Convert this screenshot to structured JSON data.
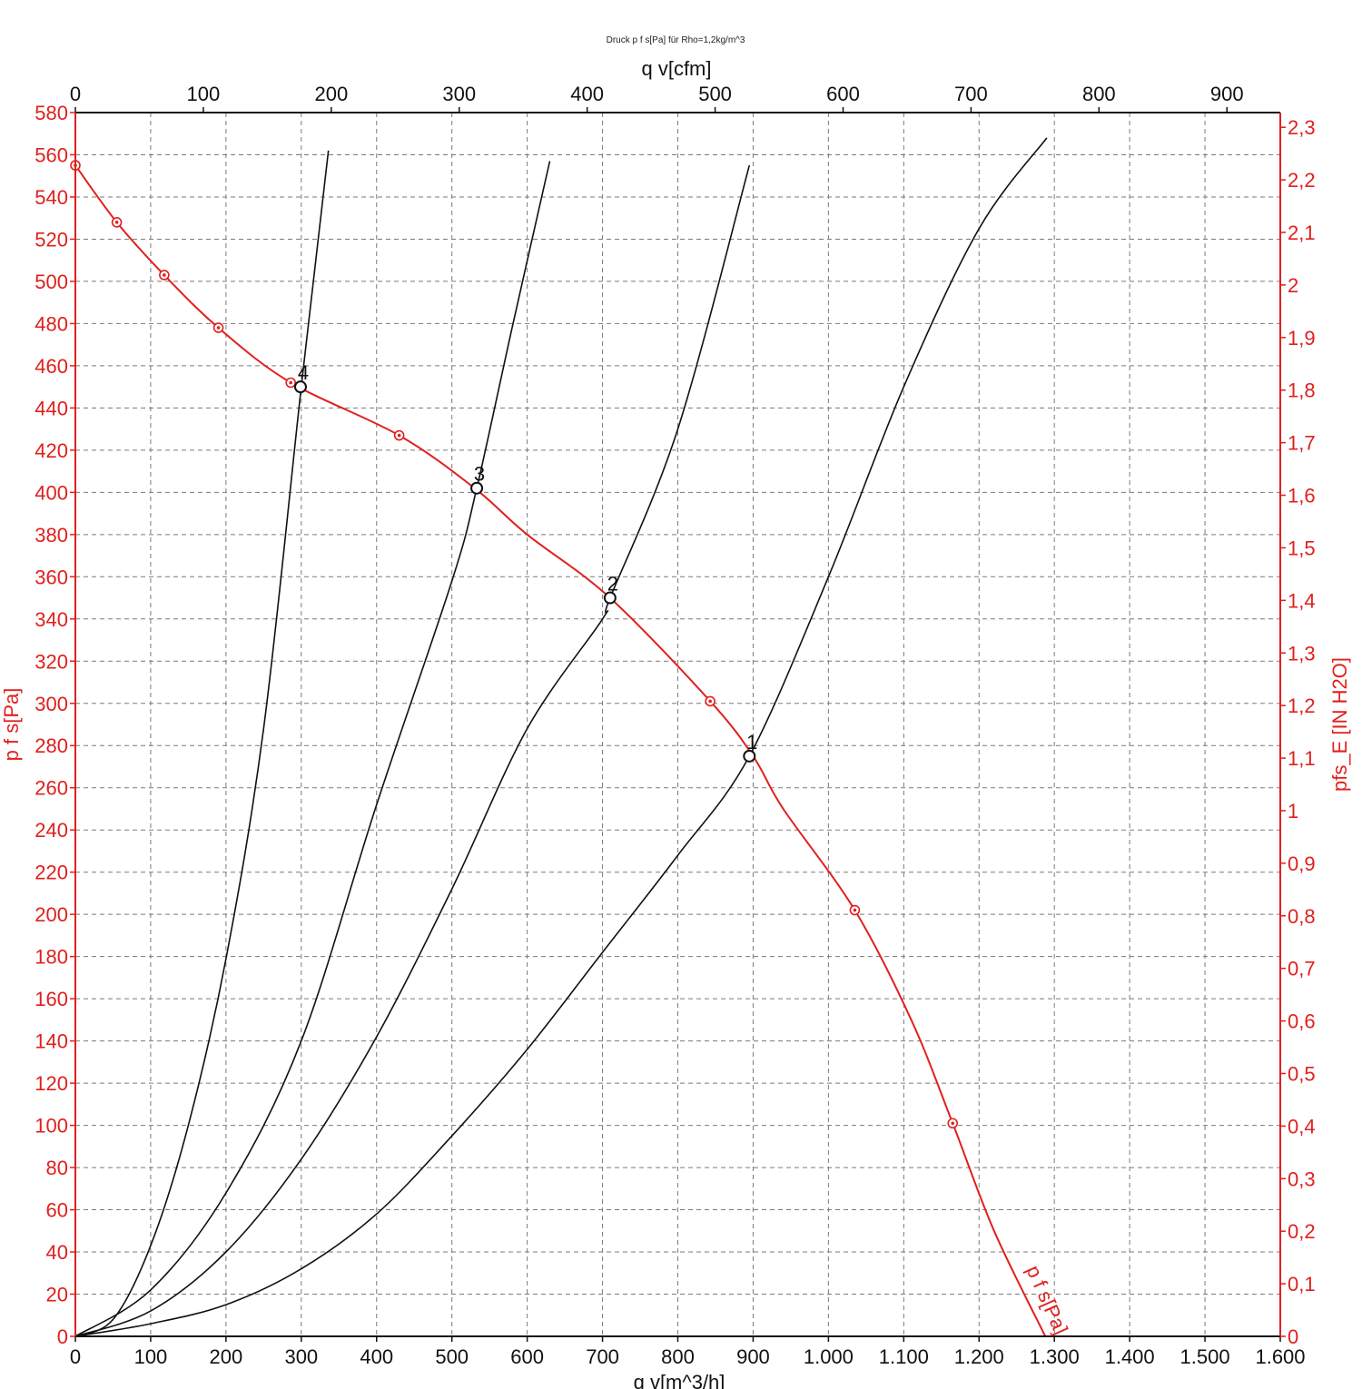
{
  "chart_data": {
    "type": "line",
    "title": "Druck p f s[Pa] für Rho=1,2kg/m^3",
    "xlabel": "q v[m^3/h]",
    "x2label": "q v[cfm]",
    "ylabel": "p f s[Pa]",
    "y2label": "pfs_E [IN H2O]",
    "xlim": [
      0,
      1600
    ],
    "ylim": [
      0,
      580
    ],
    "x2lim": [
      0,
      941.7
    ],
    "y2lim": [
      0,
      2.328
    ],
    "grid": true,
    "x_ticks": [
      "0",
      "100",
      "200",
      "300",
      "400",
      "500",
      "600",
      "700",
      "800",
      "900",
      "1.000",
      "1.100",
      "1.200",
      "1.300",
      "1.400",
      "1.500",
      "1.600"
    ],
    "x_tick_values": [
      0,
      100,
      200,
      300,
      400,
      500,
      600,
      700,
      800,
      900,
      1000,
      1100,
      1200,
      1300,
      1400,
      1500,
      1600
    ],
    "y_ticks": [
      "0",
      "20",
      "40",
      "60",
      "80",
      "100",
      "120",
      "140",
      "160",
      "180",
      "200",
      "220",
      "240",
      "260",
      "280",
      "300",
      "320",
      "340",
      "360",
      "380",
      "400",
      "420",
      "440",
      "460",
      "480",
      "500",
      "520",
      "540",
      "560",
      "580"
    ],
    "y_tick_values": [
      0,
      20,
      40,
      60,
      80,
      100,
      120,
      140,
      160,
      180,
      200,
      220,
      240,
      260,
      280,
      300,
      320,
      340,
      360,
      380,
      400,
      420,
      440,
      460,
      480,
      500,
      520,
      540,
      560,
      580
    ],
    "x2_ticks": [
      "0",
      "100",
      "200",
      "300",
      "400",
      "500",
      "600",
      "700",
      "800",
      "900"
    ],
    "x2_tick_values": [
      0,
      100,
      200,
      300,
      400,
      500,
      600,
      700,
      800,
      900
    ],
    "y2_ticks": [
      "0",
      "0,1",
      "0,2",
      "0,3",
      "0,4",
      "0,5",
      "0,6",
      "0,7",
      "0,8",
      "0,9",
      "1",
      "1,1",
      "1,2",
      "1,3",
      "1,4",
      "1,5",
      "1,6",
      "1,7",
      "1,8",
      "1,9",
      "2",
      "2,1",
      "2,2",
      "2,3"
    ],
    "y2_tick_values": [
      0,
      0.1,
      0.2,
      0.3,
      0.4,
      0.5,
      0.6,
      0.7,
      0.8,
      0.9,
      1,
      1.1,
      1.2,
      1.3,
      1.4,
      1.5,
      1.6,
      1.7,
      1.8,
      1.9,
      2,
      2.1,
      2.2,
      2.3
    ],
    "fan_curve": {
      "name": "p f s[Pa]",
      "color": "#e0201d",
      "x": [
        0,
        55,
        118,
        190,
        286,
        430,
        530,
        600,
        710,
        843,
        900,
        940,
        1035,
        1110,
        1165,
        1220,
        1288
      ],
      "y": [
        555,
        528,
        503,
        478,
        452,
        427,
        402,
        380,
        350,
        301,
        275,
        250,
        202,
        150,
        101,
        50,
        0
      ]
    },
    "fan_markers": {
      "x": [
        0,
        55,
        118,
        190,
        286,
        430,
        843,
        1035,
        1165
      ],
      "y": [
        555,
        528,
        503,
        478,
        452,
        427,
        301,
        202,
        101
      ]
    },
    "system_curves": [
      {
        "color": "#111111",
        "x": [
          0,
          50,
          100,
          150,
          200,
          250,
          300,
          336
        ],
        "y": [
          0,
          8,
          43,
          100,
          179,
          288,
          450,
          562
        ]
      },
      {
        "color": "#111111",
        "x": [
          0,
          100,
          200,
          300,
          400,
          500,
          533,
          580,
          630
        ],
        "y": [
          0,
          22,
          68,
          140,
          252,
          358,
          402,
          478,
          557
        ]
      },
      {
        "color": "#111111",
        "x": [
          0,
          100,
          200,
          300,
          400,
          500,
          600,
          700,
          710,
          800,
          895
        ],
        "y": [
          0,
          12,
          40,
          84,
          142,
          212,
          288,
          340,
          350,
          430,
          555
        ]
      },
      {
        "color": "#111111",
        "x": [
          0,
          100,
          200,
          300,
          400,
          500,
          600,
          700,
          800,
          895,
          1000,
          1100,
          1200,
          1290
        ],
        "y": [
          0,
          6,
          15,
          32,
          58,
          95,
          136,
          182,
          228,
          275,
          360,
          450,
          525,
          568
        ]
      }
    ],
    "operating_points": [
      {
        "label": "1",
        "x": 895,
        "y": 275
      },
      {
        "label": "2",
        "x": 710,
        "y": 350
      },
      {
        "label": "3",
        "x": 533,
        "y": 402
      },
      {
        "label": "4",
        "x": 299,
        "y": 450
      }
    ]
  }
}
